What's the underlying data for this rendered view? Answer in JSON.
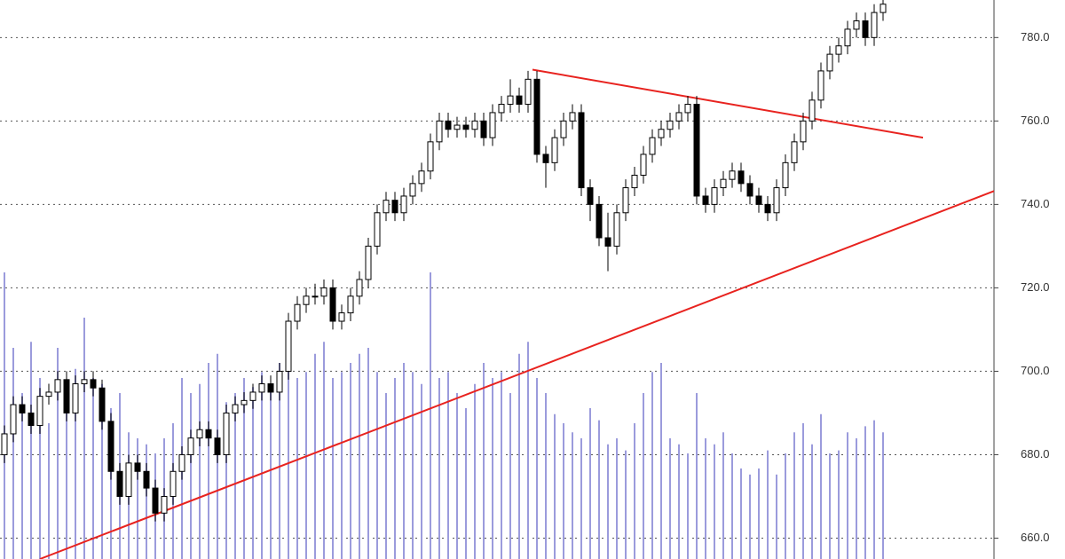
{
  "chart_data": {
    "type": "candlestick",
    "ylim": [
      655,
      789
    ],
    "yticks": [
      {
        "value": 660,
        "label": "660.0"
      },
      {
        "value": 680,
        "label": "680.0"
      },
      {
        "value": 700,
        "label": "700.0"
      },
      {
        "value": 720,
        "label": "720.0"
      },
      {
        "value": 740,
        "label": "740.0"
      },
      {
        "value": 760,
        "label": "760.0"
      },
      {
        "value": 780,
        "label": "780.0"
      }
    ],
    "xlim": [
      -0.5,
      111.5
    ],
    "grid": true,
    "up_color": "#ffffff",
    "down_color": "#000000",
    "volume_color": "#9b9bdc",
    "ohlc": [
      [
        680,
        687,
        678,
        685
      ],
      [
        685,
        694,
        683,
        692
      ],
      [
        692,
        694,
        688,
        690
      ],
      [
        690,
        692,
        685,
        687
      ],
      [
        687,
        696,
        685,
        694
      ],
      [
        694,
        697,
        692,
        695
      ],
      [
        695,
        700,
        693,
        698
      ],
      [
        698,
        700,
        688,
        690
      ],
      [
        690,
        699,
        688,
        697
      ],
      [
        697,
        700,
        695,
        698
      ],
      [
        698,
        700,
        694,
        696
      ],
      [
        696,
        698,
        686,
        688
      ],
      [
        688,
        690,
        674,
        676
      ],
      [
        676,
        678,
        668,
        670
      ],
      [
        670,
        680,
        668,
        678
      ],
      [
        678,
        680,
        674,
        676
      ],
      [
        676,
        678,
        670,
        672
      ],
      [
        672,
        674,
        664,
        666
      ],
      [
        666,
        672,
        664,
        670
      ],
      [
        670,
        678,
        668,
        676
      ],
      [
        676,
        682,
        674,
        680
      ],
      [
        680,
        686,
        678,
        684
      ],
      [
        684,
        688,
        682,
        686
      ],
      [
        686,
        688,
        682,
        684
      ],
      [
        684,
        686,
        678,
        680
      ],
      [
        680,
        692,
        678,
        690
      ],
      [
        690,
        694,
        688,
        692
      ],
      [
        692,
        695,
        690,
        693
      ],
      [
        693,
        697,
        691,
        695
      ],
      [
        695,
        699,
        693,
        697
      ],
      [
        697,
        699,
        693,
        695
      ],
      [
        695,
        702,
        693,
        700
      ],
      [
        700,
        714,
        698,
        712
      ],
      [
        712,
        718,
        710,
        716
      ],
      [
        716,
        720,
        714,
        718
      ],
      [
        718,
        721,
        716,
        718
      ],
      [
        718,
        722,
        716,
        720
      ],
      [
        720,
        722,
        710,
        712
      ],
      [
        712,
        716,
        710,
        714
      ],
      [
        714,
        720,
        712,
        718
      ],
      [
        718,
        724,
        716,
        722
      ],
      [
        722,
        732,
        720,
        730
      ],
      [
        730,
        740,
        728,
        738
      ],
      [
        738,
        743,
        736,
        741
      ],
      [
        741,
        743,
        736,
        738
      ],
      [
        738,
        744,
        736,
        742
      ],
      [
        742,
        747,
        740,
        745
      ],
      [
        745,
        750,
        743,
        748
      ],
      [
        748,
        757,
        746,
        755
      ],
      [
        755,
        762,
        753,
        760
      ],
      [
        760,
        762,
        756,
        758
      ],
      [
        758,
        761,
        756,
        759
      ],
      [
        759,
        761,
        756,
        758
      ],
      [
        758,
        762,
        756,
        760
      ],
      [
        760,
        762,
        754,
        756
      ],
      [
        756,
        764,
        754,
        762
      ],
      [
        762,
        766,
        760,
        764
      ],
      [
        764,
        770,
        762,
        766
      ],
      [
        766,
        768,
        762,
        764
      ],
      [
        764,
        772,
        762,
        770
      ],
      [
        770,
        772,
        750,
        752
      ],
      [
        752,
        754,
        744,
        750
      ],
      [
        750,
        758,
        748,
        756
      ],
      [
        756,
        762,
        754,
        760
      ],
      [
        760,
        764,
        758,
        762
      ],
      [
        762,
        764,
        742,
        744
      ],
      [
        744,
        746,
        736,
        740
      ],
      [
        740,
        742,
        730,
        732
      ],
      [
        732,
        738,
        724,
        730
      ],
      [
        730,
        740,
        728,
        738
      ],
      [
        738,
        746,
        736,
        744
      ],
      [
        744,
        749,
        742,
        747
      ],
      [
        747,
        754,
        745,
        752
      ],
      [
        752,
        758,
        750,
        756
      ],
      [
        756,
        760,
        754,
        758
      ],
      [
        758,
        762,
        756,
        760
      ],
      [
        760,
        764,
        758,
        762
      ],
      [
        762,
        766,
        760,
        764
      ],
      [
        764,
        766,
        740,
        742
      ],
      [
        742,
        744,
        738,
        740
      ],
      [
        740,
        746,
        738,
        744
      ],
      [
        744,
        748,
        742,
        746
      ],
      [
        746,
        750,
        744,
        748
      ],
      [
        748,
        750,
        743,
        745
      ],
      [
        745,
        747,
        740,
        742
      ],
      [
        742,
        744,
        738,
        740
      ],
      [
        740,
        742,
        736,
        738
      ],
      [
        738,
        746,
        736,
        744
      ],
      [
        744,
        752,
        742,
        750
      ],
      [
        750,
        757,
        748,
        755
      ],
      [
        755,
        762,
        753,
        760
      ],
      [
        760,
        767,
        758,
        765
      ],
      [
        765,
        774,
        763,
        772
      ],
      [
        772,
        778,
        770,
        776
      ],
      [
        776,
        780,
        774,
        778
      ],
      [
        778,
        784,
        776,
        782
      ],
      [
        782,
        786,
        780,
        784
      ],
      [
        784,
        786,
        778,
        780
      ],
      [
        780,
        788,
        778,
        786
      ],
      [
        786,
        789,
        784,
        788
      ]
    ],
    "volume": [
      95,
      70,
      55,
      72,
      60,
      45,
      70,
      58,
      63,
      80,
      60,
      58,
      50,
      55,
      42,
      40,
      38,
      35,
      40,
      45,
      60,
      55,
      58,
      65,
      68,
      52,
      55,
      60,
      57,
      62,
      58,
      65,
      68,
      60,
      62,
      68,
      72,
      60,
      62,
      65,
      68,
      70,
      62,
      55,
      60,
      65,
      62,
      58,
      95,
      60,
      62,
      55,
      50,
      58,
      65,
      60,
      62,
      55,
      68,
      72,
      60,
      55,
      48,
      45,
      42,
      40,
      50,
      46,
      38,
      40,
      36,
      45,
      55,
      62,
      65,
      40,
      38,
      35,
      55,
      40,
      38,
      42,
      35,
      30,
      28,
      30,
      36,
      28,
      35,
      42,
      45,
      38,
      48,
      35,
      36,
      42,
      40,
      44,
      46,
      42
    ],
    "trendlines": [
      {
        "color": "#e8231f",
        "x": [
          59.5,
          103.5
        ],
        "y": [
          772.3,
          756
        ]
      },
      {
        "color": "#e8231f",
        "x": [
          4,
          111.5
        ],
        "y": [
          655,
          743.2
        ]
      }
    ]
  }
}
